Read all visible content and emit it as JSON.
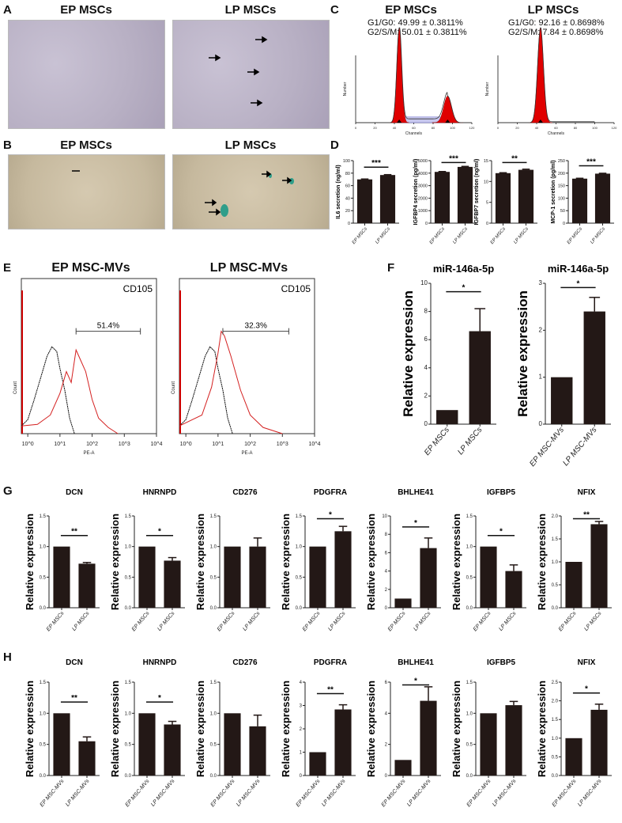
{
  "panels": {
    "A": {
      "label": "A",
      "titles": [
        "EP MSCs",
        "LP MSCs"
      ]
    },
    "B": {
      "label": "B",
      "titles": [
        "EP MSCs",
        "LP MSCs"
      ]
    },
    "C": {
      "label": "C",
      "titles": [
        "EP MSCs",
        "LP MSCs"
      ],
      "stats": [
        [
          "G1/G0: 49.99 ± 0.3811%",
          "G2/S/M: 50.01 ± 0.3811%"
        ],
        [
          "G1/G0: 92.16 ± 0.8698%",
          "G2/S/M: 7.84 ± 0.8698%"
        ]
      ],
      "xlabel": "Channels",
      "ylabel": "Number",
      "colors": {
        "fit": "#e00000",
        "s_phase": "#6a6acf"
      }
    },
    "D": {
      "label": "D"
    },
    "E": {
      "label": "E",
      "titles": [
        "EP MSC-MVs",
        "LP MSC-MVs"
      ]
    },
    "F": {
      "label": "F"
    },
    "G": {
      "label": "G"
    },
    "H": {
      "label": "H"
    }
  },
  "chart_data": [
    {
      "panel": "C",
      "type": "histogram",
      "title": "EP MSCs",
      "xlabel": "Channels",
      "ylabel": "Number",
      "xlim": [
        0,
        120
      ],
      "xticks": [
        "0",
        "20",
        "40",
        "60",
        "80",
        "100",
        "120"
      ],
      "peaks": [
        {
          "phase": "G1/G0",
          "channel": 45,
          "height": 100,
          "width": 2.5
        },
        {
          "phase": "G2/S/M",
          "channel": 95,
          "height": 28,
          "width": 4
        }
      ],
      "s_phase_level": 4
    },
    {
      "panel": "C",
      "type": "histogram",
      "title": "LP MSCs",
      "xlabel": "Channels",
      "ylabel": "Number",
      "xlim": [
        0,
        120
      ],
      "xticks": [
        "0",
        "20",
        "40",
        "60",
        "80",
        "100",
        "120"
      ],
      "peaks": [
        {
          "phase": "G1/G0",
          "channel": 44,
          "height": 100,
          "width": 3
        }
      ],
      "s_phase_level": 1
    },
    {
      "panel": "D",
      "type": "bar",
      "title": "",
      "ylabel": "IL6 secretion (ng/ml)",
      "categories": [
        "EP MSCs",
        "LP MSCs"
      ],
      "values": [
        70,
        77
      ],
      "errors": [
        0.6,
        0.6
      ],
      "ylim": [
        0,
        100
      ],
      "yticks": [
        "0",
        "20",
        "40",
        "60",
        "80",
        "100"
      ],
      "significance": "***"
    },
    {
      "panel": "D",
      "type": "bar",
      "title": "",
      "ylabel": "IGFBP4 secretion (pg/ml)",
      "categories": [
        "EP MSCs",
        "LP MSCs"
      ],
      "values": [
        4100,
        4500
      ],
      "errors": [
        30,
        40
      ],
      "ylim": [
        0,
        5000
      ],
      "yticks": [
        "0",
        "1000",
        "2000",
        "3000",
        "4000",
        "5000"
      ],
      "significance": "***"
    },
    {
      "panel": "D",
      "type": "bar",
      "title": "",
      "ylabel": "IGFBP7 secretion (ng/ml)",
      "categories": [
        "EP MSCs",
        "LP MSCs"
      ],
      "values": [
        12,
        12.8
      ],
      "errors": [
        0.1,
        0.15
      ],
      "ylim": [
        0,
        15
      ],
      "yticks": [
        "0",
        "5",
        "10",
        "15"
      ],
      "significance": "**"
    },
    {
      "panel": "D",
      "type": "bar",
      "title": "",
      "ylabel": "MCP-1 secretion (pg/ml)",
      "categories": [
        "EP MSCs",
        "LP MSCs"
      ],
      "values": [
        178,
        198
      ],
      "errors": [
        1.5,
        1.5
      ],
      "ylim": [
        0,
        250
      ],
      "yticks": [
        "0",
        "50",
        "100",
        "150",
        "200",
        "250"
      ],
      "significance": "***"
    },
    {
      "panel": "E",
      "type": "histogram",
      "title": "EP MSC-MVs",
      "marker": "CD105",
      "xlabel": "PE-A",
      "ylabel": "Count",
      "xlim": [
        -0.2,
        4
      ],
      "xticks": [
        "10^0",
        "10^1",
        "10^2",
        "10^3",
        "10^4"
      ],
      "gate": {
        "from": 1.5,
        "to": 3.5,
        "label": "51.4%"
      },
      "series": [
        {
          "color": "#111111",
          "points": [
            [
              -0.2,
              5
            ],
            [
              0,
              9
            ],
            [
              0.2,
              22
            ],
            [
              0.4,
              36
            ],
            [
              0.6,
              50
            ],
            [
              0.75,
              56
            ],
            [
              0.9,
              53
            ],
            [
              1.0,
              42
            ],
            [
              1.15,
              28
            ],
            [
              1.3,
              10
            ],
            [
              1.45,
              0
            ]
          ]
        },
        {
          "color": "#d42020",
          "points": [
            [
              -0.2,
              5
            ],
            [
              0.3,
              6
            ],
            [
              0.7,
              12
            ],
            [
              1.0,
              26
            ],
            [
              1.2,
              40
            ],
            [
              1.35,
              33
            ],
            [
              1.5,
              54
            ],
            [
              1.65,
              47
            ],
            [
              1.8,
              40
            ],
            [
              2.0,
              22
            ],
            [
              2.2,
              10
            ],
            [
              2.5,
              4
            ],
            [
              2.8,
              0
            ]
          ]
        }
      ]
    },
    {
      "panel": "E",
      "type": "histogram",
      "title": "LP MSC-MVs",
      "marker": "CD105",
      "xlabel": "PE-A",
      "ylabel": "Count",
      "xlim": [
        -0.2,
        4
      ],
      "xticks": [
        "10^0",
        "10^1",
        "10^2",
        "10^3",
        "10^4"
      ],
      "gate": {
        "from": 1.15,
        "to": 3.2,
        "label": "32.3%"
      },
      "series": [
        {
          "color": "#111111",
          "points": [
            [
              -0.2,
              5
            ],
            [
              0,
              9
            ],
            [
              0.2,
              22
            ],
            [
              0.4,
              36
            ],
            [
              0.6,
              50
            ],
            [
              0.75,
              56
            ],
            [
              0.9,
              53
            ],
            [
              1.0,
              42
            ],
            [
              1.15,
              28
            ],
            [
              1.3,
              10
            ],
            [
              1.45,
              0
            ]
          ]
        },
        {
          "color": "#d42020",
          "points": [
            [
              -0.2,
              5
            ],
            [
              0.5,
              12
            ],
            [
              0.8,
              30
            ],
            [
              1.0,
              52
            ],
            [
              1.1,
              66
            ],
            [
              1.2,
              63
            ],
            [
              1.4,
              50
            ],
            [
              1.7,
              28
            ],
            [
              2.0,
              12
            ],
            [
              2.4,
              4
            ],
            [
              3.0,
              0
            ]
          ]
        }
      ]
    },
    {
      "panel": "F",
      "type": "bar",
      "title": "miR-146a-5p",
      "ylabel": "Relative expression",
      "categories": [
        "EP MSCs",
        "LP MSCs"
      ],
      "values": [
        1,
        6.6
      ],
      "errors": [
        0,
        1.6
      ],
      "ylim": [
        0,
        10
      ],
      "yticks": [
        "0",
        "2",
        "4",
        "6",
        "8",
        "10"
      ],
      "significance": "*"
    },
    {
      "panel": "F",
      "type": "bar",
      "title": "miR-146a-5p",
      "ylabel": "Relative expression",
      "categories": [
        "EP MSC-MVs",
        "LP MSC-MVs"
      ],
      "values": [
        1,
        2.4
      ],
      "errors": [
        0,
        0.3
      ],
      "ylim": [
        0,
        3
      ],
      "yticks": [
        "0",
        "1",
        "2",
        "3"
      ],
      "significance": "*"
    },
    {
      "panel": "G",
      "type": "bar",
      "title": "DCN",
      "ylabel": "Relative expression",
      "categories": [
        "EP MSCs",
        "LP MSCs"
      ],
      "values": [
        1,
        0.72
      ],
      "errors": [
        0,
        0.02
      ],
      "ylim": [
        0,
        1.5
      ],
      "yticks": [
        "0.0",
        "0.5",
        "1.0",
        "1.5"
      ],
      "significance": "**"
    },
    {
      "panel": "G",
      "type": "bar",
      "title": "HNRNPD",
      "ylabel": "Relative expression",
      "categories": [
        "EP MSCs",
        "LP MSCs"
      ],
      "values": [
        1,
        0.77
      ],
      "errors": [
        0,
        0.05
      ],
      "ylim": [
        0,
        1.5
      ],
      "yticks": [
        "0.0",
        "0.5",
        "1.0",
        "1.5"
      ],
      "significance": "*"
    },
    {
      "panel": "G",
      "type": "bar",
      "title": "CD276",
      "ylabel": "Relative expression",
      "categories": [
        "EP MSCs",
        "LP MSCs"
      ],
      "values": [
        1,
        1.0
      ],
      "errors": [
        0,
        0.14
      ],
      "ylim": [
        0,
        1.5
      ],
      "yticks": [
        "0.0",
        "0.5",
        "1.0",
        "1.5"
      ],
      "significance": ""
    },
    {
      "panel": "G",
      "type": "bar",
      "title": "PDGFRA",
      "ylabel": "Relative expression",
      "categories": [
        "EP MSCs",
        "LP MSCs"
      ],
      "values": [
        1,
        1.25
      ],
      "errors": [
        0,
        0.08
      ],
      "ylim": [
        0,
        1.5
      ],
      "yticks": [
        "0.0",
        "0.5",
        "1.0",
        "1.5"
      ],
      "significance": "*"
    },
    {
      "panel": "G",
      "type": "bar",
      "title": "BHLHE41",
      "ylabel": "Relative expression",
      "categories": [
        "EP MSCs",
        "LP MSCs"
      ],
      "values": [
        1,
        6.5
      ],
      "errors": [
        0,
        1.1
      ],
      "ylim": [
        0,
        10
      ],
      "yticks": [
        "0",
        "2",
        "4",
        "6",
        "8",
        "10"
      ],
      "significance": "*"
    },
    {
      "panel": "G",
      "type": "bar",
      "title": "IGFBP5",
      "ylabel": "Relative expression",
      "categories": [
        "EP MSCs",
        "LP MSCs"
      ],
      "values": [
        1,
        0.6
      ],
      "errors": [
        0,
        0.1
      ],
      "ylim": [
        0,
        1.5
      ],
      "yticks": [
        "0.0",
        "0.5",
        "1.0",
        "1.5"
      ],
      "significance": "*"
    },
    {
      "panel": "G",
      "type": "bar",
      "title": "NFIX",
      "ylabel": "Relative expression",
      "categories": [
        "EP MSCs",
        "LP MSCs"
      ],
      "values": [
        1,
        1.82
      ],
      "errors": [
        0,
        0.06
      ],
      "ylim": [
        0,
        2
      ],
      "yticks": [
        "0.0",
        "0.5",
        "1.0",
        "1.5",
        "2.0"
      ],
      "significance": "**"
    },
    {
      "panel": "H",
      "type": "bar",
      "title": "DCN",
      "ylabel": "Relative expression",
      "categories": [
        "EP MSC-MVs",
        "LP MSC-MVs"
      ],
      "values": [
        1,
        0.55
      ],
      "errors": [
        0,
        0.07
      ],
      "ylim": [
        0,
        1.5
      ],
      "yticks": [
        "0.0",
        "0.5",
        "1.0",
        "1.5"
      ],
      "significance": "**"
    },
    {
      "panel": "H",
      "type": "bar",
      "title": "HNRNPD",
      "ylabel": "Relative expression",
      "categories": [
        "EP MSC-MVs",
        "LP MSC-MVs"
      ],
      "values": [
        1,
        0.82
      ],
      "errors": [
        0,
        0.05
      ],
      "ylim": [
        0,
        1.5
      ],
      "yticks": [
        "0.0",
        "0.5",
        "1.0",
        "1.5"
      ],
      "significance": "*"
    },
    {
      "panel": "H",
      "type": "bar",
      "title": "CD276",
      "ylabel": "Relative expression",
      "categories": [
        "EP MSC-MVs",
        "LP MSC-MVs"
      ],
      "values": [
        1,
        0.79
      ],
      "errors": [
        0,
        0.18
      ],
      "ylim": [
        0,
        1.5
      ],
      "yticks": [
        "0.0",
        "0.5",
        "1.0",
        "1.5"
      ],
      "significance": ""
    },
    {
      "panel": "H",
      "type": "bar",
      "title": "PDGFRA",
      "ylabel": "Relative expression",
      "categories": [
        "EP MSC-MVs",
        "LP MSC-MVs"
      ],
      "values": [
        1,
        2.83
      ],
      "errors": [
        0,
        0.2
      ],
      "ylim": [
        0,
        4
      ],
      "yticks": [
        "0",
        "1",
        "2",
        "3",
        "4"
      ],
      "significance": "**"
    },
    {
      "panel": "H",
      "type": "bar",
      "title": "BHLHE41",
      "ylabel": "Relative expression",
      "categories": [
        "EP MSC-MVs",
        "LP MSC-MVs"
      ],
      "values": [
        1,
        4.8
      ],
      "errors": [
        0,
        0.9
      ],
      "ylim": [
        0,
        6
      ],
      "yticks": [
        "0",
        "2",
        "4",
        "6"
      ],
      "significance": "*"
    },
    {
      "panel": "H",
      "type": "bar",
      "title": "IGFBP5",
      "ylabel": "Relative expression",
      "categories": [
        "EP MSC-MVs",
        "LP MSC-MVs"
      ],
      "values": [
        1,
        1.13
      ],
      "errors": [
        0,
        0.06
      ],
      "ylim": [
        0,
        1.5
      ],
      "yticks": [
        "0.0",
        "0.5",
        "1.0",
        "1.5"
      ],
      "significance": ""
    },
    {
      "panel": "H",
      "type": "bar",
      "title": "NFIX",
      "ylabel": "Relative expression",
      "categories": [
        "EP MSC-MVs",
        "LP MSC-MVs"
      ],
      "values": [
        1,
        1.76
      ],
      "errors": [
        0,
        0.15
      ],
      "ylim": [
        0,
        2.5
      ],
      "yticks": [
        "0.0",
        "0.5",
        "1.0",
        "1.5",
        "2.0",
        "2.5"
      ],
      "significance": "*"
    }
  ]
}
